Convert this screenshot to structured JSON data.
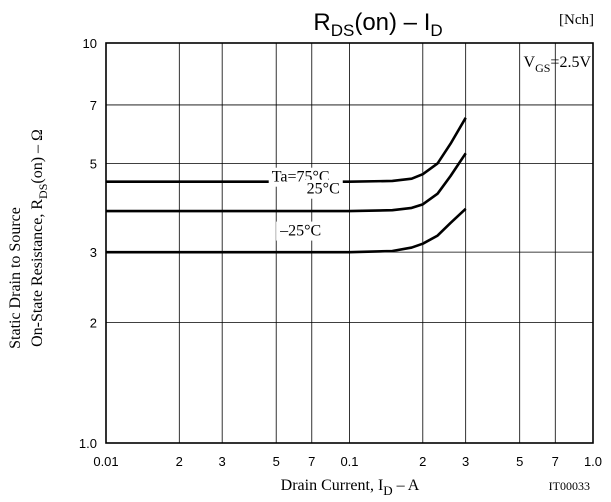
{
  "chart_data": {
    "type": "line",
    "title_main": "R",
    "title_main_sub": "DS",
    "title_rest": "(on)  –  I",
    "title_rest_sub": "D",
    "tag": "[Nch]",
    "condition_main": "V",
    "condition_sub": "GS",
    "condition_rest": "=2.5V",
    "ylabel_line1": "Static Drain to Source",
    "ylabel_line2_main": "On-State Resistance, R",
    "ylabel_line2_sub": "DS",
    "ylabel_line2_rest": "(on)  –  Ω",
    "xlabel_main": "Drain Current, I",
    "xlabel_sub": "D",
    "xlabel_rest": "  –  A",
    "code": "IT00033",
    "x_scale": "log",
    "y_scale": "log",
    "xlim": [
      0.01,
      1.0
    ],
    "ylim": [
      1.0,
      10
    ],
    "grid": true,
    "x_ticks": [
      {
        "value": 0.01,
        "label": "0.01"
      },
      {
        "value": 0.02,
        "label": "2"
      },
      {
        "value": 0.03,
        "label": "3"
      },
      {
        "value": 0.05,
        "label": "5"
      },
      {
        "value": 0.07,
        "label": "7"
      },
      {
        "value": 0.1,
        "label": "0.1"
      },
      {
        "value": 0.2,
        "label": "2"
      },
      {
        "value": 0.3,
        "label": "3"
      },
      {
        "value": 0.5,
        "label": "5"
      },
      {
        "value": 0.7,
        "label": "7"
      },
      {
        "value": 1.0,
        "label": "1.0"
      }
    ],
    "y_ticks": [
      {
        "value": 1.0,
        "label": "1.0"
      },
      {
        "value": 2,
        "label": "2"
      },
      {
        "value": 3,
        "label": "3"
      },
      {
        "value": 5,
        "label": "5"
      },
      {
        "value": 7,
        "label": "7"
      },
      {
        "value": 10,
        "label": "10"
      }
    ],
    "series": [
      {
        "name": "Ta=75°C",
        "x": [
          0.01,
          0.05,
          0.1,
          0.15,
          0.18,
          0.2,
          0.23,
          0.26,
          0.3
        ],
        "y": [
          4.5,
          4.5,
          4.5,
          4.52,
          4.58,
          4.7,
          5.0,
          5.6,
          6.5
        ]
      },
      {
        "name": "25°C",
        "x": [
          0.01,
          0.05,
          0.1,
          0.15,
          0.18,
          0.2,
          0.23,
          0.26,
          0.3
        ],
        "y": [
          3.8,
          3.8,
          3.8,
          3.82,
          3.87,
          3.95,
          4.2,
          4.65,
          5.3
        ]
      },
      {
        "name": "–25°C",
        "x": [
          0.01,
          0.05,
          0.1,
          0.15,
          0.18,
          0.2,
          0.23,
          0.26,
          0.3
        ],
        "y": [
          3.0,
          3.0,
          3.0,
          3.02,
          3.08,
          3.15,
          3.3,
          3.55,
          3.85
        ]
      }
    ]
  }
}
